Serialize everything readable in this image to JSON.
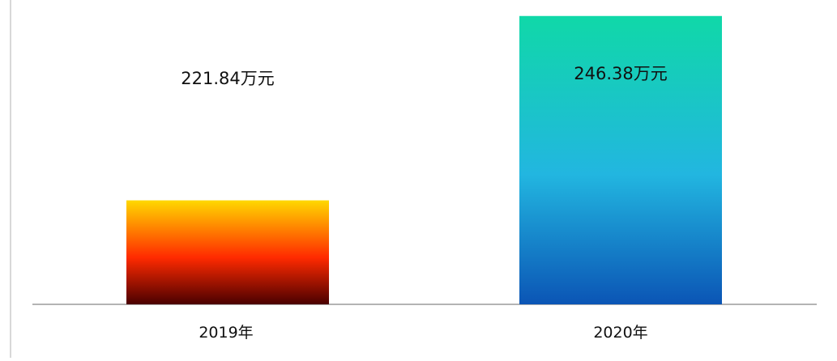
{
  "chart_data": {
    "type": "bar",
    "title": "",
    "xlabel": "",
    "ylabel": "",
    "categories": [
      "2019年",
      "2020年"
    ],
    "values": [
      221.84,
      246.38
    ],
    "data_labels": [
      "221.84万元",
      "246.38万元"
    ],
    "unit": "万元",
    "ylim": [
      208,
      247
    ],
    "grid": false,
    "legend": "none",
    "bar_gradients": [
      {
        "top": "#ffd800",
        "mid": "#ff2a00",
        "bottom": "#4a0000"
      },
      {
        "top": "#10d8a8",
        "mid": "#22b6e0",
        "bottom": "#0b55b5"
      }
    ],
    "axis_color": "#9a9a9a"
  }
}
